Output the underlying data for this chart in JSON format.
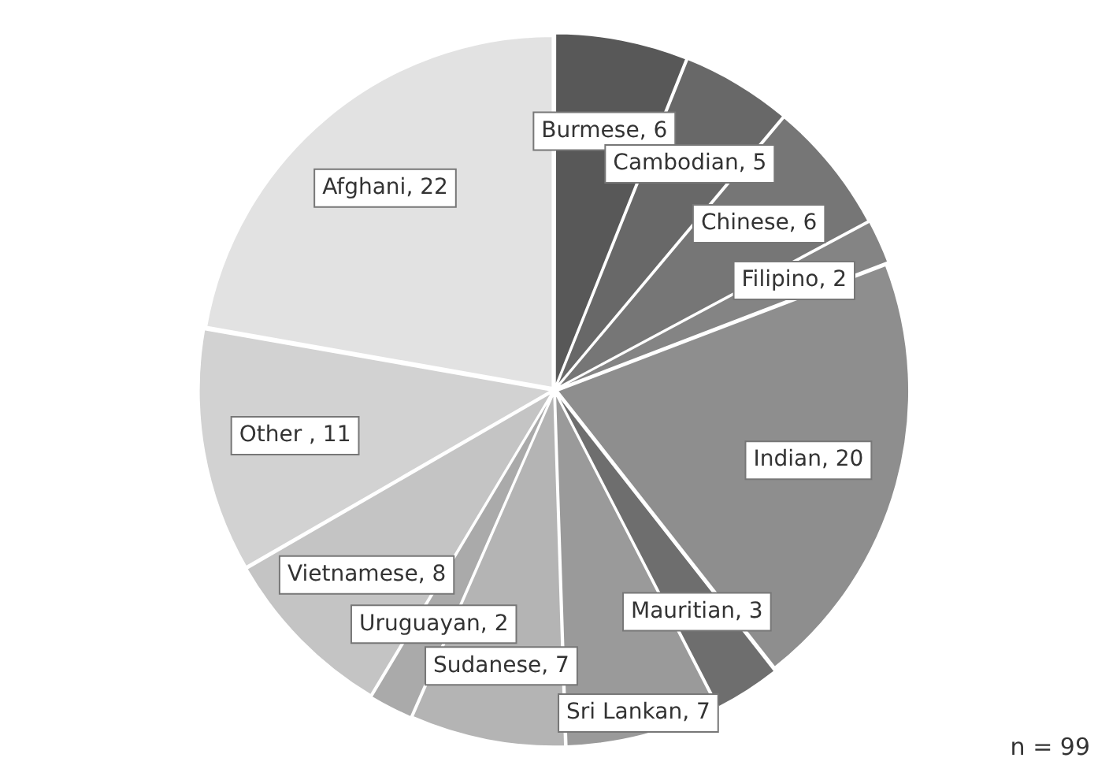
{
  "chart_data": {
    "type": "pie",
    "categories": [
      "Burmese",
      "Cambodian",
      "Chinese",
      "Filipino",
      "Indian",
      "Mauritian",
      "Sri Lankan",
      "Sudanese",
      "Uruguayan",
      "Vietnamese",
      "Other ",
      "Afghani"
    ],
    "values": [
      6,
      5,
      6,
      2,
      20,
      3,
      7,
      7,
      2,
      8,
      11,
      22
    ],
    "colors": [
      "#585858",
      "#686868",
      "#767676",
      "#848484",
      "#8e8e8e",
      "#6e6e6e",
      "#9a9a9a",
      "#b4b4b4",
      "#aaaaaa",
      "#c4c4c4",
      "#d2d2d2",
      "#e2e2e2"
    ],
    "value_labels": [
      ", 6",
      ", 5",
      ", 6",
      ", 2",
      ", 20",
      ", 3",
      ", 7",
      ", 7",
      ", 2",
      ", 8",
      ", 11",
      ", 22"
    ],
    "legend": false,
    "annotations": [
      "n = 99"
    ]
  }
}
